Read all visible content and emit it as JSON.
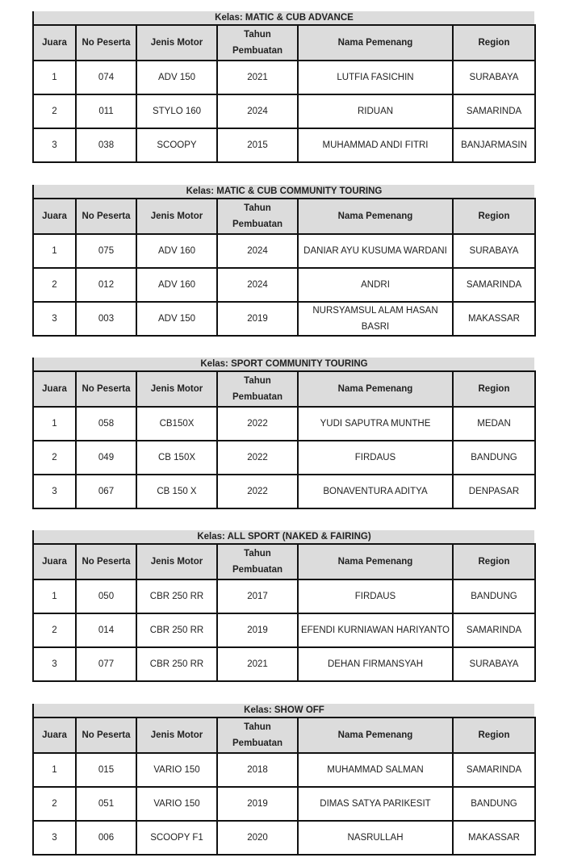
{
  "headers": [
    "Juara",
    "No Peserta",
    "Jenis Motor",
    "Tahun Pembuatan",
    "Nama Pemenang",
    "Region"
  ],
  "tables": [
    {
      "title": "Kelas: MATIC & CUB ADVANCE",
      "rows": [
        [
          "1",
          "074",
          "ADV 150",
          "2021",
          "LUTFIA FASICHIN",
          "SURABAYA"
        ],
        [
          "2",
          "011",
          "STYLO 160",
          "2024",
          "RIDUAN",
          "SAMARINDA"
        ],
        [
          "3",
          "038",
          "SCOOPY",
          "2015",
          "MUHAMMAD ANDI FITRI",
          "BANJARMASIN"
        ]
      ]
    },
    {
      "title": "Kelas: MATIC & CUB COMMUNITY TOURING",
      "rows": [
        [
          "1",
          "075",
          "ADV 160",
          "2024",
          "DANIAR AYU KUSUMA WARDANI",
          "SURABAYA"
        ],
        [
          "2",
          "012",
          "ADV 160",
          "2024",
          "ANDRI",
          "SAMARINDA"
        ],
        [
          "3",
          "003",
          "ADV 150",
          "2019",
          "NURSYAMSUL ALAM HASAN BASRI",
          "MAKASSAR"
        ]
      ]
    },
    {
      "title": "Kelas: SPORT COMMUNITY TOURING",
      "rows": [
        [
          "1",
          "058",
          "CB150X",
          "2022",
          "YUDI SAPUTRA MUNTHE",
          "MEDAN"
        ],
        [
          "2",
          "049",
          "CB 150X",
          "2022",
          "FIRDAUS",
          "BANDUNG"
        ],
        [
          "3",
          "067",
          "CB 150 X",
          "2022",
          "BONAVENTURA ADITYA",
          "DENPASAR"
        ]
      ]
    },
    {
      "title": "Kelas: ALL SPORT (NAKED & FAIRING)",
      "rows": [
        [
          "1",
          "050",
          "CBR 250 RR",
          "2017",
          "FIRDAUS",
          "BANDUNG"
        ],
        [
          "2",
          "014",
          "CBR 250 RR",
          "2019",
          "EFENDI KURNIAWAN HARIYANTO",
          "SAMARINDA"
        ],
        [
          "3",
          "077",
          "CBR 250 RR",
          "2021",
          "DEHAN FIRMANSYAH",
          "SURABAYA"
        ]
      ]
    },
    {
      "title": "Kelas: SHOW OFF",
      "rows": [
        [
          "1",
          "015",
          "VARIO 150",
          "2018",
          "MUHAMMAD SALMAN",
          "SAMARINDA"
        ],
        [
          "2",
          "051",
          "VARIO 150",
          "2019",
          "DIMAS SATYA PARIKESIT",
          "BANDUNG"
        ],
        [
          "3",
          "006",
          "SCOOPY F1",
          "2020",
          "NASRULLAH",
          "MAKASSAR"
        ]
      ]
    }
  ]
}
